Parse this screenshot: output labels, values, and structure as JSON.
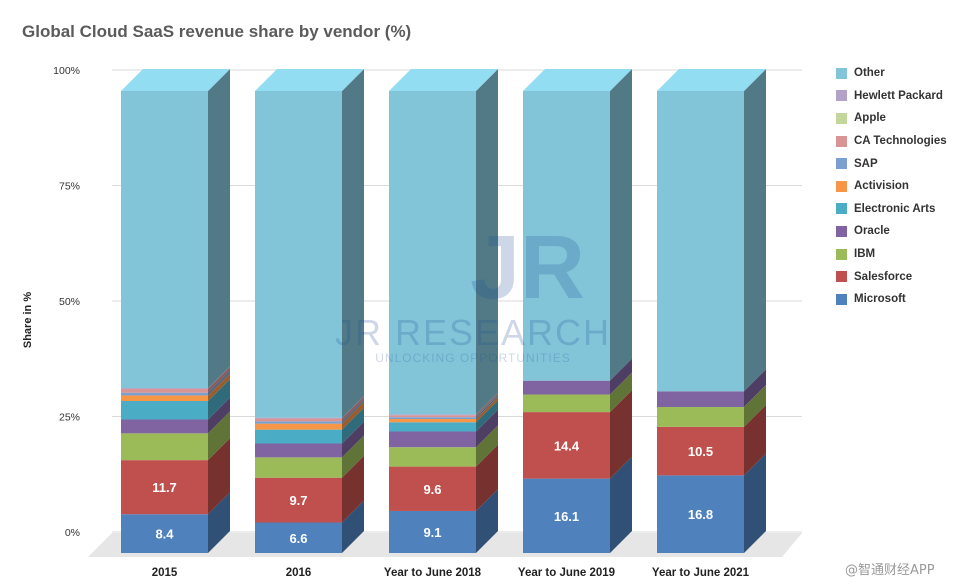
{
  "chart_data": {
    "type": "bar",
    "stacked": true,
    "style_3d": true,
    "title": "Global Cloud SaaS revenue share by vendor (%)",
    "ylabel": "Share in %",
    "xlabel": "",
    "ylim": [
      0,
      100
    ],
    "yticks": [
      "0%",
      "25%",
      "50%",
      "75%",
      "100%"
    ],
    "categories": [
      "2015",
      "2016",
      "Year to June 2018",
      "Year to June 2019",
      "Year to June 2021"
    ],
    "series": [
      {
        "name": "Microsoft",
        "color": "#4f81bd",
        "values": [
          8.4,
          6.6,
          9.1,
          16.1,
          16.8
        ],
        "labels": [
          "8.4",
          "6.6",
          "9.1",
          "16.1",
          "16.8"
        ]
      },
      {
        "name": "Salesforce",
        "color": "#c0504d",
        "values": [
          11.7,
          9.7,
          9.6,
          14.4,
          10.5
        ],
        "labels": [
          "11.7",
          "9.7",
          "9.6",
          "14.4",
          "10.5"
        ]
      },
      {
        "name": "IBM",
        "color": "#9bbb59",
        "values": [
          5.8,
          4.4,
          4.2,
          3.8,
          4.3
        ],
        "labels": [
          "",
          "",
          "",
          "",
          ""
        ]
      },
      {
        "name": "Oracle",
        "color": "#8064a2",
        "values": [
          3.0,
          3.0,
          3.4,
          3.0,
          3.4
        ],
        "labels": [
          "",
          "",
          "",
          "",
          ""
        ]
      },
      {
        "name": "Electronic Arts",
        "color": "#4bacc6",
        "values": [
          4.0,
          3.0,
          2.0,
          0,
          0
        ],
        "labels": [
          "",
          "",
          "",
          "",
          ""
        ]
      },
      {
        "name": "Activision",
        "color": "#f79646",
        "values": [
          1.2,
          1.3,
          0.7,
          0,
          0
        ],
        "labels": [
          "",
          "",
          "",
          "",
          ""
        ]
      },
      {
        "name": "SAP",
        "color": "#7ba0d0",
        "values": [
          0.6,
          0.5,
          0.4,
          0,
          0
        ],
        "labels": [
          "",
          "",
          "",
          "",
          ""
        ]
      },
      {
        "name": "CA Technologies",
        "color": "#d99594",
        "values": [
          0.8,
          0.6,
          0.4,
          0,
          0
        ],
        "labels": [
          "",
          "",
          "",
          "",
          ""
        ]
      },
      {
        "name": "Apple",
        "color": "#c3d69b",
        "values": [
          0,
          0,
          0,
          0,
          0
        ],
        "labels": [
          "",
          "",
          "",
          "",
          ""
        ]
      },
      {
        "name": "Hewlett Packard",
        "color": "#b3a2c7",
        "values": [
          0.2,
          0.2,
          0.2,
          0,
          0
        ],
        "labels": [
          "",
          "",
          "",
          "",
          ""
        ]
      },
      {
        "name": "Other",
        "color": "#83c5d8",
        "values": [
          64.3,
          70.7,
          70.0,
          62.7,
          65.0
        ],
        "labels": [
          "",
          "",
          "",
          "",
          ""
        ]
      }
    ],
    "legend": [
      "Other",
      "Hewlett Packard",
      "Apple",
      "CA Technologies",
      "SAP",
      "Activision",
      "Electronic Arts",
      "Oracle",
      "IBM",
      "Salesforce",
      "Microsoft"
    ],
    "legend_position": "right",
    "grid": true
  },
  "watermark_text": "@智通财经APP"
}
